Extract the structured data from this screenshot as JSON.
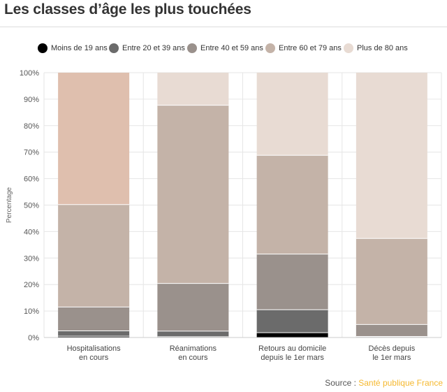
{
  "title": "Les classes d’âge les plus touchées",
  "source": {
    "prefix": "Source : ",
    "name": "Santé publique France"
  },
  "chart_data": {
    "type": "bar",
    "stacked": true,
    "categories": [
      [
        "Hospitalisations",
        "en cours"
      ],
      [
        "Réanimations",
        "en cours"
      ],
      [
        "Retours au domicile",
        "depuis le 1er mars"
      ],
      [
        "Décès depuis",
        "le 1er mars"
      ]
    ],
    "series": [
      {
        "name": "Moins de 19 ans",
        "color": "#000000",
        "values": [
          0.5,
          0.3,
          1.8,
          0.1
        ]
      },
      {
        "name": "Entre 20 et 39 ans",
        "color": "#6b6b6b",
        "values": [
          2.0,
          2.1,
          8.7,
          0.3
        ]
      },
      {
        "name": "Entre 40 et 59 ans",
        "color": "#9a918c",
        "values": [
          9.0,
          18.0,
          21.0,
          4.5
        ]
      },
      {
        "name": "Entre 60 et 79 ans",
        "color": "#c4b3a8",
        "values": [
          38.7,
          67.3,
          37.3,
          32.5
        ]
      },
      {
        "name": "Plus de 80 ans",
        "values": [
          49.8,
          12.3,
          31.2,
          62.6
        ],
        "colors": [
          "#dfbfae",
          "#e8dbd3",
          "#e8dbd3",
          "#e8dbd3"
        ]
      }
    ],
    "ylabel": "Percentage",
    "ylim": [
      0,
      100
    ],
    "yticks": [
      "0%",
      "10%",
      "20%",
      "30%",
      "40%",
      "50%",
      "60%",
      "70%",
      "80%",
      "90%",
      "100%"
    ],
    "grid": true,
    "legend": "top"
  }
}
